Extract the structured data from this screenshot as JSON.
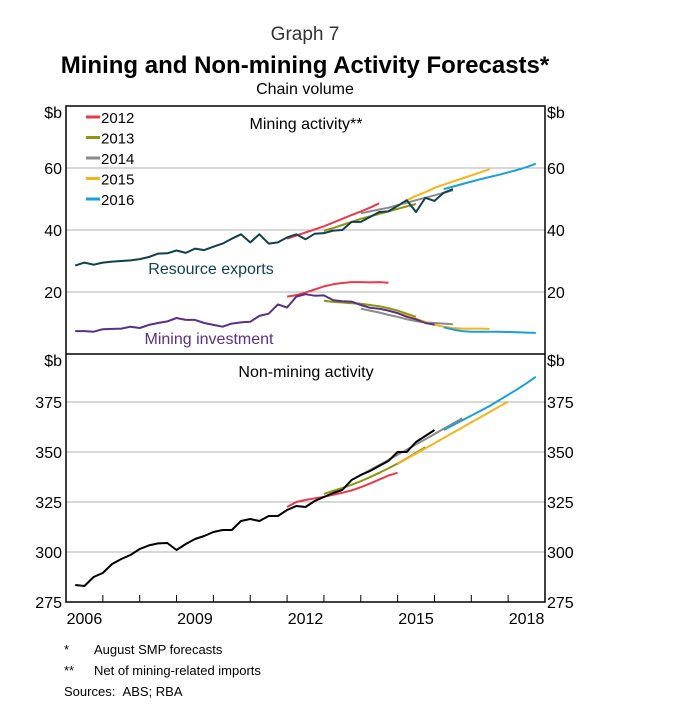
{
  "header": {
    "graph_number": "Graph 7",
    "title": "Mining and Non-mining Activity Forecasts*",
    "subtitle": "Chain volume"
  },
  "footnotes": [
    {
      "mark": "*",
      "text": "August SMP forecasts"
    },
    {
      "mark": "**",
      "text": "Net of mining-related imports"
    }
  ],
  "sources": {
    "label": "Sources:",
    "text": "ABS; RBA"
  },
  "colors": {
    "2012": "#e8394d",
    "2013": "#8c9613",
    "2014": "#8a8a8a",
    "2015": "#f6b31b",
    "2016": "#1a9fd8",
    "resource_exports": "#103f4f",
    "mining_investment": "#5a3082",
    "non_mining": "#000000",
    "grid": "#b0b0b0"
  },
  "chart_data": [
    {
      "type": "line",
      "title": "Mining activity**",
      "ylabel_left": "$b",
      "ylabel_right": "$b",
      "ylim": [
        0,
        80
      ],
      "yticks": [
        20,
        40,
        60
      ],
      "xlim": [
        2006,
        2019
      ],
      "grid": true,
      "legend": {
        "placement": "top-left",
        "entries": [
          "2012",
          "2013",
          "2014",
          "2015",
          "2016"
        ]
      },
      "annotations": [
        "Resource exports",
        "Mining investment"
      ],
      "series": [
        {
          "name": "Resource exports",
          "key": "resource_exports",
          "start": 2006.25,
          "step": 0.25,
          "values": [
            28.5,
            29.5,
            28.8,
            29.5,
            29.8,
            30,
            30.2,
            30.6,
            31.3,
            32.4,
            32.5,
            33.4,
            32.6,
            34,
            33.5,
            34.6,
            35.6,
            37.2,
            38.6,
            36,
            38.6,
            35.6,
            36,
            37.6,
            38.6,
            37,
            38.8,
            39,
            39.8,
            40,
            42.6,
            42.6,
            44.2,
            45.8,
            46,
            47.8,
            49.6,
            45.8,
            50.4,
            49.4,
            52,
            53.2
          ]
        },
        {
          "name": "Mining investment",
          "key": "mining_investment",
          "start": 2006.25,
          "step": 0.25,
          "values": [
            7.4,
            7.4,
            7.2,
            8,
            8.1,
            8.2,
            8.8,
            8.4,
            9.4,
            10,
            10.5,
            11.6,
            11,
            11,
            10,
            9.4,
            8.8,
            9.8,
            10.2,
            10.4,
            12.3,
            13,
            16,
            15,
            18.5,
            19.3,
            18.8,
            18.9,
            17.4,
            17,
            16.9,
            15.8,
            14.9,
            14.6,
            14,
            13.2,
            12,
            11.2,
            10,
            9.5
          ]
        },
        {
          "name": "2012 forecast (resource exports)",
          "key": "2012",
          "start": 2012.0,
          "step": 0.25,
          "values": [
            37.2,
            38.2,
            39.2,
            40.2,
            41.2,
            42.4,
            43.6,
            44.8,
            46,
            47.2,
            48.6
          ]
        },
        {
          "name": "2012 forecast (mining investment)",
          "key": "2012",
          "start": 2012.0,
          "step": 0.25,
          "values": [
            18.5,
            19,
            19.8,
            20.8,
            21.8,
            22.5,
            22.9,
            23.2,
            23.2,
            23.1,
            23.2,
            23
          ]
        },
        {
          "name": "2013 forecast (resource exports)",
          "key": "2013",
          "start": 2013.0,
          "step": 0.25,
          "values": [
            39.8,
            40.6,
            41.6,
            42.6,
            43.6,
            44.4,
            45.2,
            46,
            46.8,
            47.6,
            48.4
          ]
        },
        {
          "name": "2013 forecast (mining investment)",
          "key": "2013",
          "start": 2013.0,
          "step": 0.25,
          "values": [
            17.2,
            16.8,
            16.6,
            16.4,
            16.2,
            15.8,
            15.4,
            14.8,
            14,
            13,
            12
          ]
        },
        {
          "name": "2014 forecast (resource exports)",
          "key": "2014",
          "start": 2014.0,
          "step": 0.25,
          "values": [
            45.4,
            46,
            46.6,
            47.2,
            48,
            48.8,
            49.6,
            50.4,
            51.2,
            52,
            52.8
          ]
        },
        {
          "name": "2014 forecast (mining investment)",
          "key": "2014",
          "start": 2014.0,
          "step": 0.25,
          "values": [
            14.6,
            14,
            13.4,
            12.6,
            12,
            11.2,
            10.6,
            10.2,
            10,
            9.8,
            9.6
          ]
        },
        {
          "name": "2015 forecast (resource exports)",
          "key": "2015",
          "start": 2015.0,
          "step": 0.25,
          "values": [
            47.6,
            49.6,
            51,
            52.2,
            53.6,
            54.6,
            55.6,
            56.6,
            57.6,
            58.6,
            59.6
          ]
        },
        {
          "name": "2015 forecast (mining investment)",
          "key": "2015",
          "start": 2015.0,
          "step": 0.25,
          "values": [
            13.2,
            12.4,
            11.4,
            10.4,
            9.4,
            8.8,
            8.4,
            8.2,
            8.2,
            8.2,
            8.1
          ]
        },
        {
          "name": "2016 forecast (resource exports)",
          "key": "2016",
          "start": 2016.25,
          "step": 0.25,
          "values": [
            53.2,
            54,
            54.8,
            55.6,
            56.4,
            57.1,
            57.8,
            58.6,
            59.4,
            60.3,
            61.4
          ]
        },
        {
          "name": "2016 forecast (mining investment)",
          "key": "2016",
          "start": 2016.25,
          "step": 0.25,
          "values": [
            8.6,
            7.9,
            7.4,
            7.2,
            7.2,
            7.2,
            7.2,
            7.1,
            7,
            6.9,
            6.8
          ]
        }
      ]
    },
    {
      "type": "line",
      "title": "Non-mining activity",
      "ylabel_left": "$b",
      "ylabel_right": "$b",
      "ylim": [
        275,
        399
      ],
      "yticks": [
        275,
        300,
        325,
        350,
        375
      ],
      "xlim": [
        2006,
        2019
      ],
      "xtick_labels": [
        "2006",
        "2009",
        "2012",
        "2015",
        "2018"
      ],
      "grid": true,
      "series": [
        {
          "name": "Non-mining activity",
          "key": "non_mining",
          "start": 2006.25,
          "step": 0.25,
          "values": [
            283.5,
            283,
            287.5,
            289.5,
            294,
            296.5,
            298.5,
            301.5,
            303.3,
            304.3,
            304.5,
            301,
            304,
            306.5,
            308,
            310,
            311,
            311,
            315.5,
            316.5,
            315.5,
            318,
            318,
            321,
            323,
            322.5,
            325.5,
            327.5,
            329.5,
            331,
            336,
            338.5,
            340.5,
            343,
            345.5,
            350,
            350,
            355,
            358,
            361
          ]
        },
        {
          "name": "2012 forecast",
          "key": "2012",
          "start": 2012.0,
          "step": 0.25,
          "values": [
            322.5,
            325,
            326,
            326.8,
            327.6,
            328.6,
            329.6,
            330.8,
            332.4,
            334.2,
            336.2,
            338.2,
            339.6
          ]
        },
        {
          "name": "2013 forecast",
          "key": "2013",
          "start": 2013.0,
          "step": 0.25,
          "values": [
            329,
            330.6,
            332,
            333.6,
            335.4,
            337.4,
            339.6,
            341.8,
            344.2,
            346.8,
            349.6,
            352.4
          ]
        },
        {
          "name": "2014 forecast",
          "key": "2014",
          "start": 2014.0,
          "step": 0.25,
          "values": [
            338.5,
            341,
            343.5,
            346,
            348.6,
            351.2,
            353.8,
            356.4,
            359,
            361.6,
            364.2,
            366.8
          ]
        },
        {
          "name": "2015 forecast",
          "key": "2015",
          "start": 2015.0,
          "step": 0.25,
          "values": [
            344,
            346.6,
            349.2,
            351.8,
            354.4,
            357,
            359.6,
            362.2,
            364.8,
            367.4,
            370,
            372.6,
            375.2
          ]
        },
        {
          "name": "2016 forecast",
          "key": "2016",
          "start": 2016.25,
          "step": 0.25,
          "values": [
            361,
            363.4,
            365.8,
            368.2,
            370.6,
            373,
            375.8,
            378.6,
            381.4,
            384.4,
            387.6
          ]
        }
      ]
    }
  ]
}
